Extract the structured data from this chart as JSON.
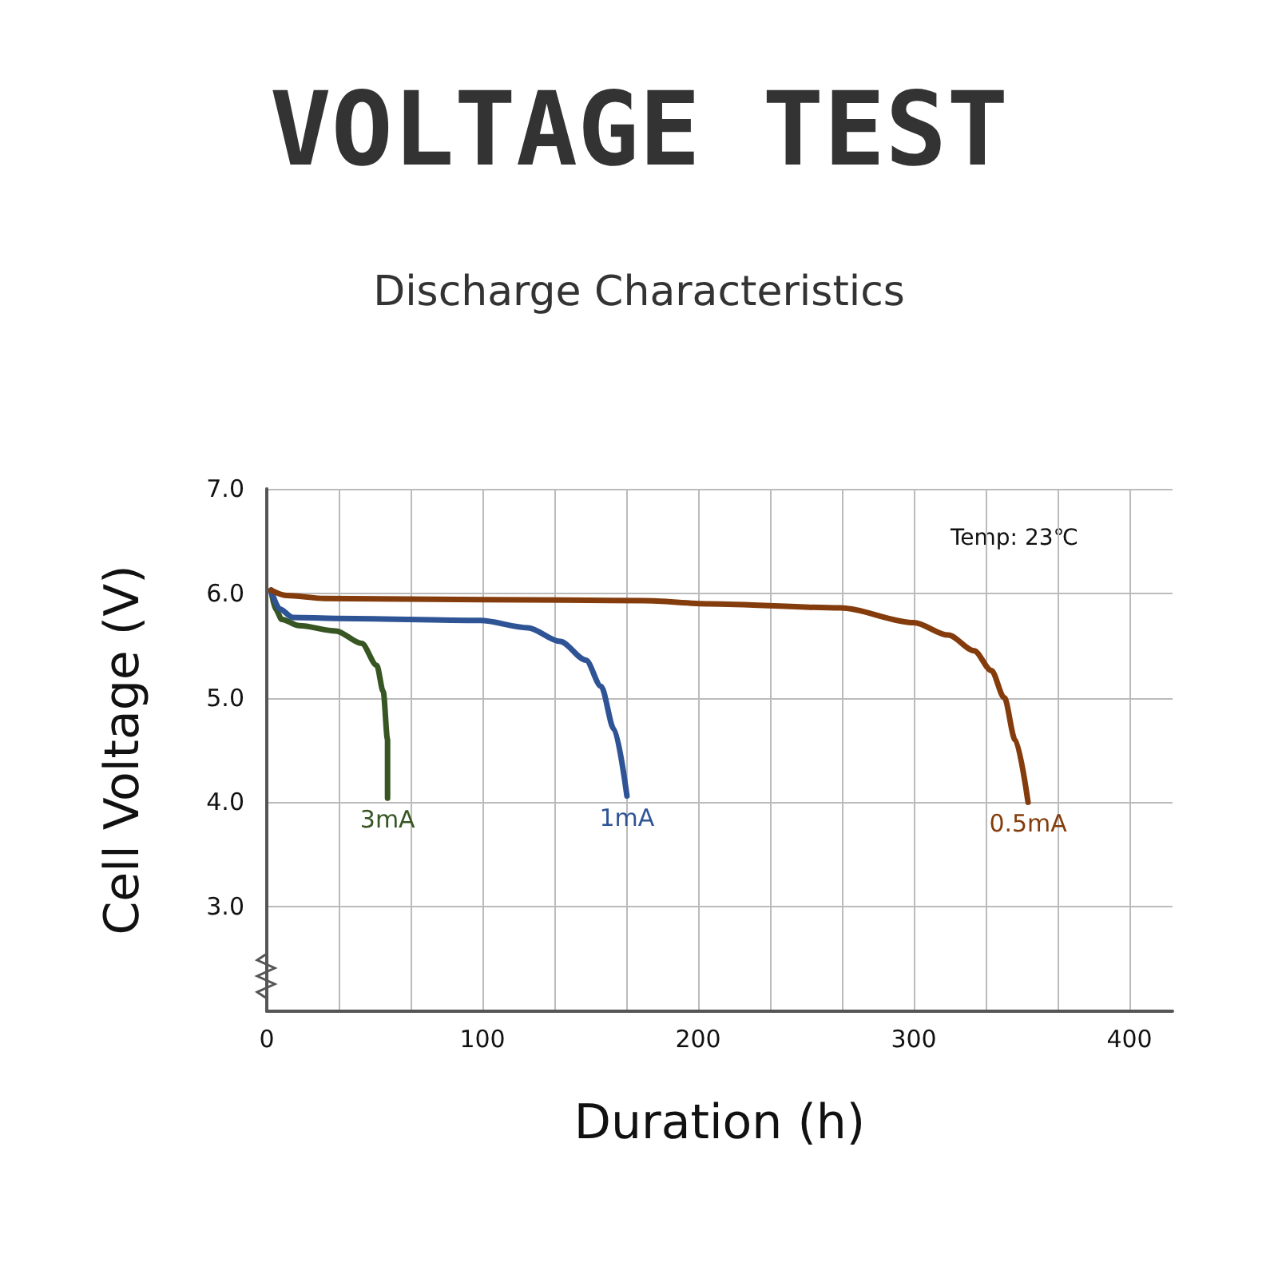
{
  "chart_data": {
    "type": "line",
    "title": "VOLTAGE TEST",
    "subtitle": "Discharge Characteristics",
    "xlabel": "Duration (h)",
    "ylabel": "Cell Voltage (V)",
    "annotations": [
      "Temp: 23℃"
    ],
    "xlim": [
      0,
      420
    ],
    "xticks": [
      0,
      {
        "value": 33.3,
        "label": null
      },
      {
        "value": 66.7,
        "label": null
      },
      100,
      {
        "value": 133.3,
        "label": null
      },
      {
        "value": 166.7,
        "label": null
      },
      200,
      {
        "value": 233.3,
        "label": null
      },
      {
        "value": 266.7,
        "label": null
      },
      300,
      {
        "value": 333.3,
        "label": null
      },
      {
        "value": 366.7,
        "label": null
      },
      400
    ],
    "ylim": [
      2,
      7
    ],
    "yticks": [
      {
        "value": 2,
        "label": null
      },
      {
        "value": 3,
        "label": "3.0"
      },
      {
        "value": 4,
        "label": "4.0"
      },
      {
        "value": 5,
        "label": "5.0"
      },
      {
        "value": 6,
        "label": "6.0"
      },
      {
        "value": 7,
        "label": "7.0"
      }
    ],
    "grid": true,
    "legend": false,
    "marker": "none",
    "line_style": "solid",
    "series": [
      {
        "name": "3mA",
        "color": "#375623",
        "x": [
          2,
          4,
          7,
          15,
          32,
          44,
          51,
          54,
          56,
          56
        ],
        "values": [
          6.03,
          5.85,
          5.75,
          5.69,
          5.64,
          5.52,
          5.31,
          5.06,
          4.6,
          4.04
        ]
      },
      {
        "name": "1mA",
        "color": "#2f5496",
        "x": [
          2,
          6,
          12,
          32,
          99,
          121,
          136,
          148,
          155,
          161,
          167
        ],
        "values": [
          6.03,
          5.85,
          5.77,
          5.76,
          5.74,
          5.67,
          5.54,
          5.36,
          5.11,
          4.7,
          4.06
        ]
      },
      {
        "name": "0.5mA",
        "color": "#843c0c",
        "x": [
          2,
          9,
          27,
          101,
          175,
          205,
          266,
          300,
          316,
          328,
          336,
          342,
          347,
          353
        ],
        "values": [
          6.03,
          5.98,
          5.95,
          5.94,
          5.93,
          5.9,
          5.86,
          5.72,
          5.6,
          5.45,
          5.26,
          5.0,
          4.6,
          4.0
        ]
      }
    ]
  }
}
